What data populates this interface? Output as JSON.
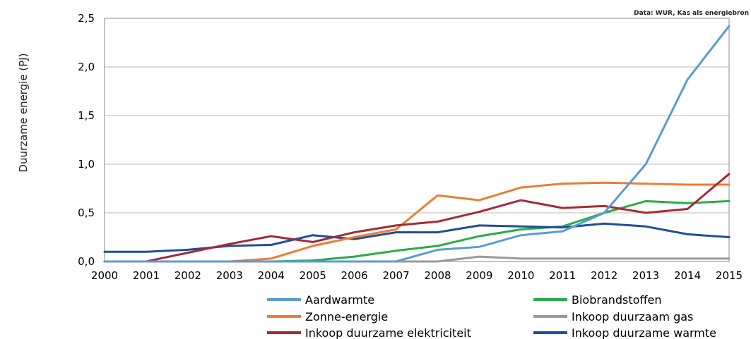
{
  "chart_data": {
    "type": "line",
    "source": "Data: WUR, Kas als energiebron",
    "ylabel": "Duurzame energie (PJ)",
    "xlabel": "",
    "ylim": [
      0,
      2.5
    ],
    "yticks": [
      0,
      0.5,
      1.0,
      1.5,
      2.0,
      2.5
    ],
    "ytick_labels": [
      "0,0",
      "0,5",
      "1,0",
      "1,5",
      "2,0",
      "2,5"
    ],
    "grid": "horizontal",
    "legend_position": "bottom",
    "x": [
      "2000",
      "2001",
      "2002",
      "2003",
      "2004",
      "2005",
      "2006",
      "2007",
      "2008",
      "2009",
      "2010",
      "2011",
      "2012",
      "2013",
      "2014",
      "2015"
    ],
    "series": [
      {
        "name": "Aardwarmte",
        "color": "#5b9bd5",
        "values": [
          0,
          0,
          0,
          0,
          0,
          0,
          0,
          0,
          0.12,
          0.15,
          0.27,
          0.31,
          0.5,
          1.0,
          1.87,
          2.42
        ]
      },
      {
        "name": "Zonne-energie",
        "color": "#ed7d31",
        "values": [
          0,
          0,
          0,
          0,
          0.03,
          0.16,
          0.25,
          0.33,
          0.68,
          0.63,
          0.76,
          0.8,
          0.81,
          0.8,
          0.79,
          0.79
        ]
      },
      {
        "name": "Inkoop duurzame elektriciteit",
        "color": "#a52a35",
        "values": [
          0,
          0,
          0.09,
          0.18,
          0.26,
          0.2,
          0.3,
          0.37,
          0.41,
          0.51,
          0.63,
          0.55,
          0.57,
          0.5,
          0.54,
          0.9
        ]
      },
      {
        "name": "Biobrandstoffen",
        "color": "#2aab4a",
        "values": [
          0,
          0,
          0,
          0,
          0,
          0.01,
          0.05,
          0.11,
          0.16,
          0.26,
          0.33,
          0.36,
          0.5,
          0.62,
          0.6,
          0.62
        ]
      },
      {
        "name": "Inkoop duurzaam gas",
        "color": "#9a9a9a",
        "values": [
          0,
          0,
          0,
          0,
          0,
          0,
          0,
          0,
          0,
          0.05,
          0.03,
          0.03,
          0.03,
          0.03,
          0.03,
          0.03
        ]
      },
      {
        "name": "Inkoop duurzame warmte",
        "color": "#1f4e9a",
        "values": [
          0.1,
          0.1,
          0.12,
          0.16,
          0.17,
          0.27,
          0.23,
          0.3,
          0.3,
          0.37,
          0.36,
          0.35,
          0.39,
          0.36,
          0.28,
          0.25
        ]
      }
    ]
  }
}
